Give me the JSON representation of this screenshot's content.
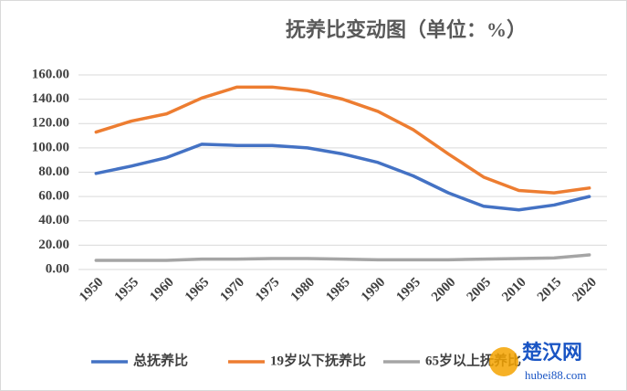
{
  "chart_data": {
    "type": "line",
    "title": "抚养比变动图（单位：%）",
    "categories": [
      "1950",
      "1955",
      "1960",
      "1965",
      "1970",
      "1975",
      "1980",
      "1985",
      "1990",
      "1995",
      "2000",
      "2005",
      "2010",
      "2015",
      "2020"
    ],
    "series": [
      {
        "name": "总抚养比",
        "color": "#4472c4",
        "values": [
          79,
          85,
          92,
          103,
          102,
          102,
          100,
          95,
          88,
          77,
          63,
          52,
          49,
          53,
          60
        ]
      },
      {
        "name": "19岁以下抚养比",
        "color": "#ed7d31",
        "values": [
          113,
          122,
          128,
          141,
          150,
          150,
          147,
          140,
          130,
          115,
          95,
          76,
          65,
          63,
          67
        ]
      },
      {
        "name": "65岁以上抚养比",
        "color": "#a5a5a5",
        "values": [
          7.5,
          7.5,
          7.5,
          8.5,
          8.5,
          9,
          9,
          8.5,
          8,
          8,
          8,
          8.5,
          9,
          9.5,
          12
        ]
      }
    ],
    "ylim": [
      0,
      160
    ],
    "yticks": [
      {
        "value": 0,
        "label": "0.00"
      },
      {
        "value": 20,
        "label": "20.00"
      },
      {
        "value": 40,
        "label": "40.00"
      },
      {
        "value": 60,
        "label": "60.00"
      },
      {
        "value": 80,
        "label": "80.00"
      },
      {
        "value": 100,
        "label": "100.00"
      },
      {
        "value": 120,
        "label": "120.00"
      },
      {
        "value": 140,
        "label": "140.00"
      },
      {
        "value": 160,
        "label": "160.00"
      }
    ],
    "grid": true,
    "legend": "bottom"
  },
  "watermark": {
    "name": "楚汉网",
    "url": "hubei88.com"
  }
}
